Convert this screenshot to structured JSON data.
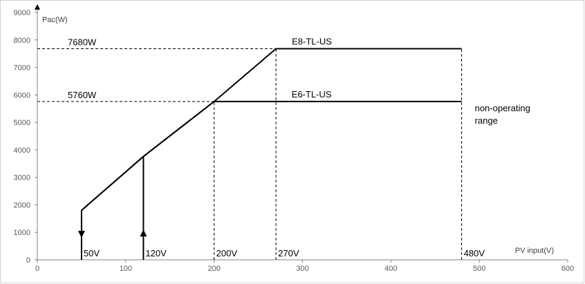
{
  "chart_data": {
    "type": "line",
    "xlabel": "PV input(V)",
    "ylabel": "Pac(W)",
    "xlim": [
      0,
      600
    ],
    "ylim": [
      0,
      9000
    ],
    "x_ticks": [
      0,
      100,
      200,
      300,
      400,
      500,
      600
    ],
    "y_ticks": [
      0,
      1000,
      2000,
      3000,
      4000,
      5000,
      6000,
      7000,
      8000,
      9000
    ],
    "grid": false,
    "series": [
      {
        "name": "E8-TL-US",
        "x": [
          50,
          120,
          200,
          270,
          480
        ],
        "y": [
          1800,
          3760,
          5760,
          7680,
          7680
        ]
      },
      {
        "name": "E6-TL-US",
        "x": [
          50,
          120,
          200,
          480
        ],
        "y": [
          1800,
          3760,
          5760,
          5760
        ]
      }
    ],
    "reference_lines": [
      {
        "label": "7680W",
        "orientation": "horizontal",
        "value": 7680,
        "from": 0,
        "to": 270
      },
      {
        "label": "5760W",
        "orientation": "horizontal",
        "value": 5760,
        "from": 0,
        "to": 200
      },
      {
        "label": "200V",
        "orientation": "vertical",
        "value": 200,
        "from": 0,
        "to": 5760
      },
      {
        "label": "270V",
        "orientation": "vertical",
        "value": 270,
        "from": 0,
        "to": 7680
      },
      {
        "label": "480V",
        "orientation": "vertical",
        "value": 480,
        "from": 0,
        "to": 7680
      }
    ],
    "voltage_markers": [
      {
        "label": "50V",
        "x": 50,
        "y_top": 1800,
        "arrow": "down"
      },
      {
        "label": "120V",
        "x": 120,
        "y_top": 3760,
        "arrow": "up"
      }
    ],
    "annotations": {
      "non_operating_range": [
        "non-operating",
        "range"
      ]
    },
    "colors": {
      "line": "#000000",
      "axis": "#808080",
      "tick_text": "#595959"
    }
  }
}
